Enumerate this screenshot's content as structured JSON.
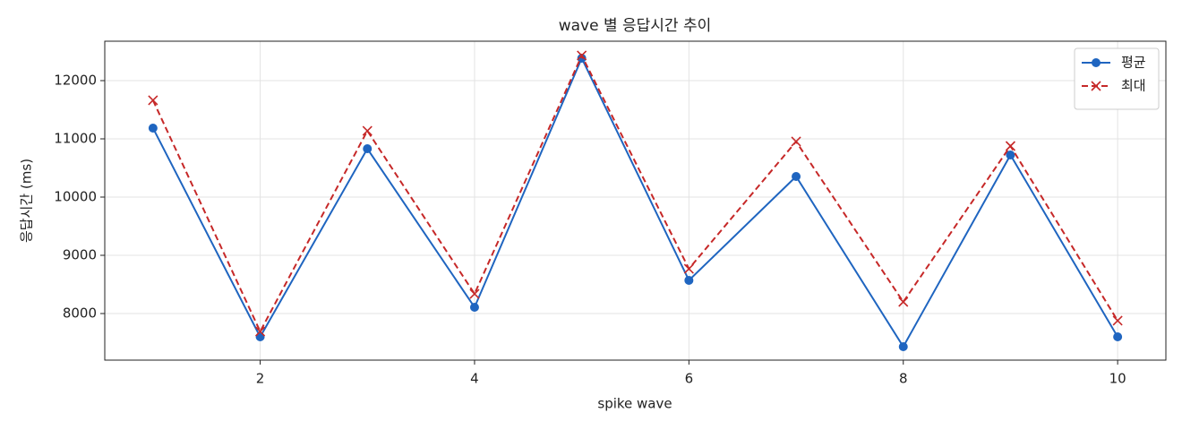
{
  "chart_data": {
    "type": "line",
    "title": "wave 별 응답시간 추이",
    "x_label": "spike wave",
    "y_label": "응답시간 (ms)",
    "x": [
      1,
      2,
      3,
      4,
      5,
      6,
      7,
      8,
      9,
      10
    ],
    "series": [
      {
        "name": "평균",
        "color": "#1f65c0",
        "linestyle": "solid",
        "marker": "circle",
        "values": [
          11185,
          7600,
          10830,
          8108,
          12385,
          8570,
          10354,
          7431,
          10723,
          7600
        ]
      },
      {
        "name": "최대",
        "color": "#c62828",
        "linestyle": "dashed",
        "marker": "x",
        "values": [
          11662,
          7692,
          11138,
          8338,
          12431,
          8769,
          10954,
          8200,
          10877,
          7877
        ]
      }
    ],
    "xlim": [
      0.55,
      10.45
    ],
    "xticks": [
      2,
      4,
      6,
      8,
      10
    ],
    "ylim": [
      7200,
      12677
    ],
    "yticks": [
      8000,
      9000,
      10000,
      11000,
      12000
    ],
    "grid": true,
    "legend": "upper right"
  }
}
